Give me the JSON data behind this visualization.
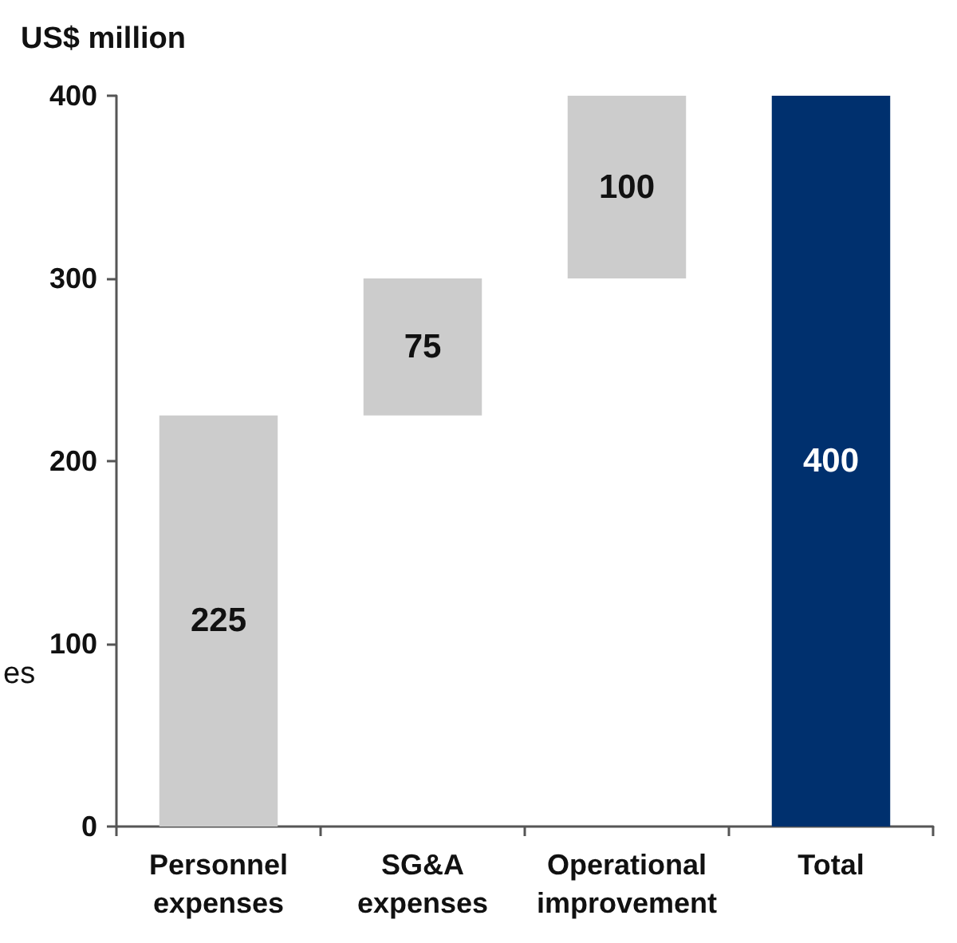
{
  "chart_data": {
    "type": "bar",
    "ylabel": "US$ million",
    "categories": [
      "Personnel\nexpenses",
      "SG&A\nexpenses",
      "Operational\nimprovement",
      "Total"
    ],
    "values": [
      225,
      75,
      100,
      400
    ],
    "base": [
      0,
      225,
      300,
      0
    ],
    "colors": [
      "#cccccc",
      "#cccccc",
      "#cccccc",
      "#00306e"
    ],
    "ylim": [
      0,
      400
    ],
    "yticks": [
      0,
      100,
      200,
      300,
      400
    ],
    "data_labels": true,
    "grid": false,
    "annotations": [
      "es"
    ]
  }
}
